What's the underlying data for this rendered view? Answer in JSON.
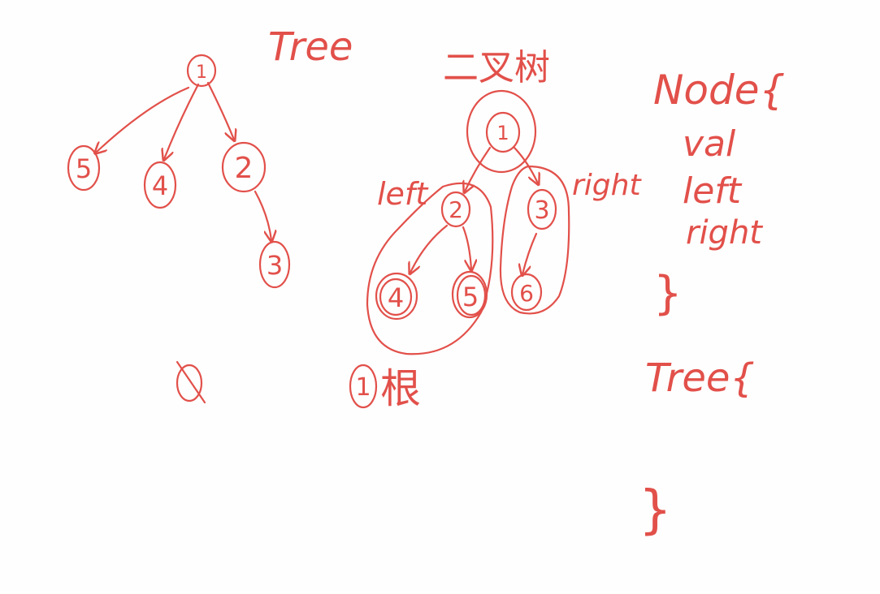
{
  "ink_color": "#e2504a",
  "general_tree": {
    "title": "Tree",
    "nodes": {
      "n1": "1",
      "n5": "5",
      "n4": "4",
      "n2": "2",
      "n3": "3"
    },
    "crossed_mark": "0"
  },
  "binary_tree": {
    "title": "二叉树",
    "left_label": "left",
    "right_label": "right",
    "nodes": {
      "n1": "1",
      "n2": "2",
      "n3": "3",
      "n4": "4",
      "n5": "5",
      "n6": "6"
    },
    "root_number": "1",
    "root_char": "根"
  },
  "code_notes": {
    "node_decl": "Node{",
    "fields": [
      "val",
      "left",
      "right"
    ],
    "close1": "}",
    "tree_decl": "Tree{",
    "close2": "}"
  }
}
